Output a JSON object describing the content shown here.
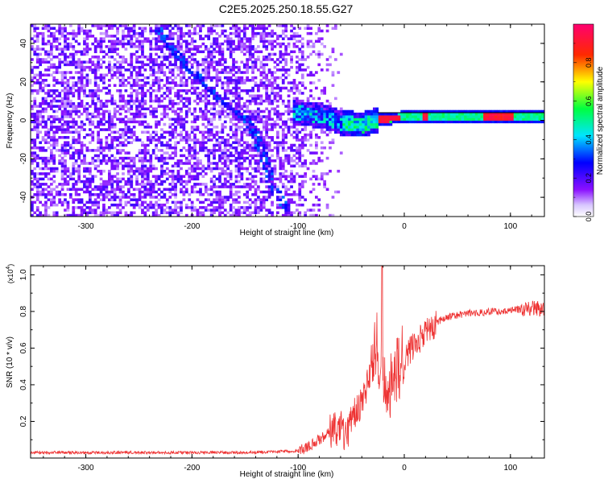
{
  "title": "C2E5.2025.250.18.55.G27",
  "chart_data": [
    {
      "type": "heatmap",
      "title": "",
      "xlabel": "Height of straight line (km)",
      "ylabel": "Frequency (Hz)",
      "xlim": [
        -352,
        132
      ],
      "ylim": [
        -50,
        50
      ],
      "xticks": [
        -300,
        -200,
        -100,
        0,
        100
      ],
      "xtick_labels": [
        "-300",
        "-200",
        "-100",
        "0",
        "100"
      ],
      "yticks": [
        -40,
        -20,
        0,
        20,
        40
      ],
      "ytick_labels": [
        "-40",
        "-20",
        "0",
        "20",
        "40"
      ],
      "colorbar": {
        "label": "Normalized spectral amplitude",
        "range": [
          0,
          1
        ],
        "ticks": [
          0.0,
          0.2,
          0.4,
          0.6,
          0.8
        ],
        "tick_labels": [
          "0.0",
          "0.2",
          "0.4",
          "0.6",
          "0.8"
        ],
        "colormap": [
          "#ffffff",
          "#7f00ff",
          "#0000ff",
          "#00ffff",
          "#00ff00",
          "#ffff00",
          "#ff0000",
          "#ff0080"
        ]
      },
      "features": {
        "noise_region_x": [
          -352,
          -60
        ],
        "noise_density_right_edge": -110,
        "diagonal_track": [
          [
            -235,
            48
          ],
          [
            -210,
            30
          ],
          [
            -175,
            10
          ],
          [
            -150,
            0
          ],
          [
            -140,
            -10
          ],
          [
            -125,
            -35
          ],
          [
            -110,
            -48
          ]
        ],
        "ridge": [
          [
            -100,
            3
          ],
          [
            -80,
            2
          ],
          [
            -60,
            -2
          ],
          [
            -40,
            -3
          ],
          [
            -25,
            0
          ],
          [
            0,
            1
          ],
          [
            50,
            1
          ],
          [
            100,
            1
          ],
          [
            132,
            1
          ]
        ],
        "peak_segments": [
          [
            -25,
            -5
          ],
          [
            15,
            20
          ],
          [
            72,
            102
          ]
        ],
        "reference_line_y": 4
      }
    },
    {
      "type": "line",
      "title": "",
      "xlabel": "Height of straight line (km)",
      "ylabel": "SNR (10 * v/v)",
      "y_multiplier": "(x10",
      "y_multiplier_exp": "4",
      "y_multiplier_close": ")",
      "xlim": [
        -352,
        132
      ],
      "ylim": [
        0,
        1.05
      ],
      "xticks": [
        -300,
        -200,
        -100,
        0,
        100
      ],
      "xtick_labels": [
        "-300",
        "-200",
        "-100",
        "0",
        "100"
      ],
      "yticks": [
        0.2,
        0.4,
        0.6,
        0.8,
        1.0
      ],
      "ytick_labels": [
        "0.2",
        "0.4",
        "0.6",
        "0.8",
        "1.0"
      ],
      "color": "#ee3333",
      "series": [
        {
          "name": "SNR",
          "x": [
            -352,
            -300,
            -250,
            -200,
            -150,
            -120,
            -100,
            -90,
            -80,
            -70,
            -65,
            -60,
            -55,
            -50,
            -45,
            -40,
            -35,
            -30,
            -25,
            -20,
            -15,
            -10,
            -5,
            0,
            10,
            20,
            30,
            40,
            50,
            60,
            70,
            80,
            90,
            100,
            110,
            120,
            132
          ],
          "y": [
            0.03,
            0.03,
            0.03,
            0.03,
            0.03,
            0.035,
            0.04,
            0.06,
            0.1,
            0.14,
            0.16,
            0.18,
            0.12,
            0.2,
            0.25,
            0.3,
            0.4,
            0.55,
            0.62,
            0.45,
            0.4,
            0.45,
            0.5,
            0.55,
            0.62,
            0.68,
            0.74,
            0.77,
            0.78,
            0.79,
            0.79,
            0.8,
            0.8,
            0.81,
            0.81,
            0.82,
            0.81
          ],
          "spike": {
            "x": -21,
            "y": 1.05
          }
        }
      ]
    }
  ]
}
